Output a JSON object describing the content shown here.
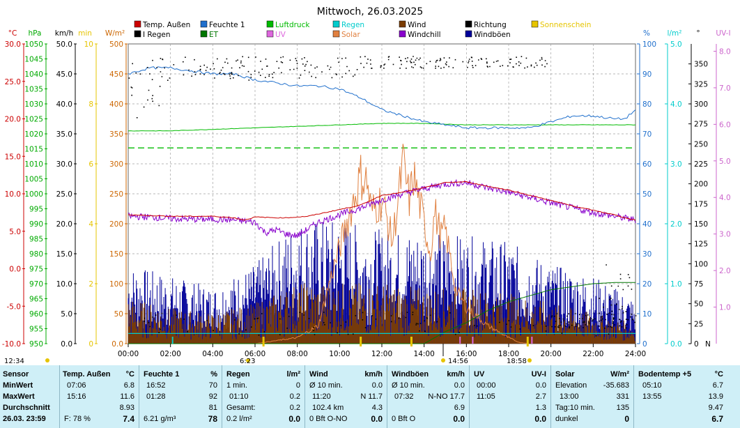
{
  "title": "Mittwoch, 26.03.2025",
  "colors": {
    "temp": "#cc0000",
    "humidity": "#1f6fcc",
    "pressure": "#00aa00",
    "rain": "#00cccc",
    "wind": "#7a3b00",
    "direction": "#000000",
    "sunshine": "#e6c400",
    "rain_rate": "#000000",
    "et": "#007700",
    "uv": "#dd66dd",
    "solar": "#e08040",
    "windchill": "#8800cc",
    "gust": "#000099",
    "grid": "#a0a0a0",
    "table_bg": "#cfeff7"
  },
  "legend": [
    {
      "key": "temp",
      "label": "Temp. Außen",
      "color": "#cc0000"
    },
    {
      "key": "humidity",
      "label": "Feuchte 1",
      "color": "#1f6fcc"
    },
    {
      "key": "pressure",
      "label": "Luftdruck",
      "color": "#00bb00"
    },
    {
      "key": "rain",
      "label": "Regen",
      "color": "#00cccc"
    },
    {
      "key": "wind",
      "label": "Wind",
      "color": "#7a3b00"
    },
    {
      "key": "direction",
      "label": "Richtung",
      "color": "#000000"
    },
    {
      "key": "sunshine",
      "label": "Sonnenschein",
      "color": "#e6c400"
    },
    {
      "key": "rain_rate",
      "label": "Ι Regen",
      "color": "#000000"
    },
    {
      "key": "et",
      "label": "ET",
      "color": "#007700"
    },
    {
      "key": "uv",
      "label": "UV",
      "color": "#dd66dd"
    },
    {
      "key": "solar",
      "label": "Solar",
      "color": "#e08040"
    },
    {
      "key": "windchill",
      "label": "Windchill",
      "color": "#8800cc"
    },
    {
      "key": "gust",
      "label": "Windböen",
      "color": "#000099"
    }
  ],
  "axes_left": [
    {
      "unit": "°C",
      "color": "#cc0000",
      "ticks": [
        "30.0",
        "25.0",
        "20.0",
        "15.0",
        "10.0",
        "5.0",
        "0.0",
        "-5.0",
        "-10.0"
      ]
    },
    {
      "unit": "hPa",
      "color": "#00aa00",
      "ticks": [
        "1050",
        "1045",
        "1040",
        "1035",
        "1030",
        "1025",
        "1020",
        "1015",
        "1010",
        "1005",
        "1000",
        "995",
        "990",
        "985",
        "980",
        "975",
        "970",
        "965",
        "960",
        "955",
        "950"
      ]
    },
    {
      "unit": "km/h",
      "color": "#000000",
      "ticks": [
        "50.0",
        "45.0",
        "40.0",
        "35.0",
        "30.0",
        "25.0",
        "20.0",
        "15.0",
        "10.0",
        "5.0",
        "0.0"
      ]
    },
    {
      "unit": "min",
      "color": "#e6c400",
      "ticks": [
        "10",
        "8",
        "6",
        "4",
        "2",
        "0"
      ]
    },
    {
      "unit": "W/m²",
      "color": "#cc6600",
      "ticks": [
        "500",
        "450",
        "400",
        "350",
        "300",
        "250",
        "200",
        "150",
        "100",
        "50",
        "0.0"
      ]
    }
  ],
  "axes_right": [
    {
      "unit": "%",
      "color": "#1f6fcc",
      "ticks": [
        "100",
        "90",
        "80",
        "70",
        "60",
        "50",
        "40",
        "30",
        "20",
        "10",
        "0"
      ]
    },
    {
      "unit": "l/m²",
      "color": "#00cccc",
      "ticks": [
        "5.0",
        "4.0",
        "3.0",
        "2.0",
        "1.0",
        "0.0"
      ]
    },
    {
      "unit": "°",
      "color": "#000000",
      "ticks": [
        "350",
        "325",
        "300",
        "275",
        "250",
        "225",
        "200",
        "175",
        "150",
        "125",
        "100",
        "75",
        "50",
        "25",
        "0"
      ],
      "bottom_label": "N"
    },
    {
      "unit": "UV-I",
      "color": "#cc66cc",
      "ticks": [
        "8.0",
        "7.0",
        "6.0",
        "5.0",
        "4.0",
        "3.0",
        "2.0",
        "1.0"
      ]
    }
  ],
  "chart_data": {
    "type": "line",
    "x_ticks": [
      "00:00",
      "02:00",
      "04:00",
      "06:00",
      "08:00",
      "10:00",
      "12:00",
      "14:00",
      "16:00",
      "18:00",
      "20:00",
      "22:00",
      "24:00"
    ],
    "series": [
      {
        "name": "Temp. Außen",
        "unit": "°C",
        "x": [
          0,
          1,
          2,
          3,
          4,
          5,
          5.5,
          6,
          7,
          7.5,
          8,
          8.5,
          9,
          10,
          11,
          12,
          13,
          14,
          15,
          16,
          17,
          18,
          19,
          20,
          21,
          22,
          23,
          23.5,
          24
        ],
        "y": [
          7.2,
          7.1,
          7.0,
          7.0,
          7.0,
          6.8,
          6.5,
          6.9,
          6.8,
          6.8,
          6.9,
          7.0,
          7.3,
          7.9,
          8.5,
          9.8,
          10.2,
          10.8,
          11.5,
          11.6,
          11.0,
          10.5,
          9.8,
          9.1,
          8.4,
          7.8,
          7.2,
          6.8,
          6.5
        ]
      },
      {
        "name": "Windchill",
        "unit": "°C",
        "x": [
          0,
          1,
          2,
          3,
          4,
          5,
          6,
          6.5,
          7,
          7.5,
          8,
          8.5,
          9,
          10,
          11,
          12,
          13,
          14,
          15,
          16,
          17,
          18,
          19,
          20,
          21,
          22,
          23,
          24
        ],
        "y": [
          7.0,
          6.9,
          6.7,
          6.6,
          6.6,
          6.5,
          6.2,
          4.8,
          5.2,
          4.6,
          4.4,
          5.3,
          6.2,
          7.2,
          8.1,
          9.2,
          10.0,
          10.7,
          11.3,
          11.5,
          10.8,
          10.2,
          9.5,
          8.8,
          8.1,
          7.5,
          7.0,
          6.5
        ]
      },
      {
        "name": "Feuchte 1",
        "unit": "%",
        "x": [
          0,
          0.5,
          1,
          2,
          3,
          4,
          5,
          6,
          7,
          8,
          9,
          10,
          11,
          12,
          13,
          14,
          15,
          16,
          17,
          18,
          19,
          20,
          21,
          22,
          23,
          23.5,
          24
        ],
        "y": [
          90,
          91,
          92,
          92,
          91,
          90,
          90,
          88,
          87,
          86,
          86,
          85,
          82,
          78,
          76,
          74,
          73,
          72,
          72,
          72,
          72,
          74,
          76,
          76,
          75,
          75,
          78
        ]
      },
      {
        "name": "Luftdruck",
        "unit": "hPa",
        "x": [
          0,
          2,
          4,
          6,
          8,
          10,
          12,
          14,
          16,
          18,
          20,
          22,
          24
        ],
        "y": [
          1021,
          1021,
          1021.5,
          1022,
          1022.5,
          1023,
          1023.5,
          1023.5,
          1023,
          1023,
          1023,
          1023,
          1023
        ]
      },
      {
        "name": "Solar",
        "unit": "W/m²",
        "x": [
          6,
          7,
          8,
          9,
          9.5,
          10,
          10.5,
          11,
          11.3,
          11.5,
          12,
          12.3,
          12.5,
          13,
          13.3,
          13.5,
          14,
          14.3,
          14.5,
          14.8,
          15,
          15.5,
          16,
          17,
          18,
          18.5,
          19
        ],
        "y": [
          0,
          5,
          10,
          30,
          100,
          160,
          220,
          280,
          270,
          220,
          240,
          200,
          170,
          300,
          240,
          280,
          200,
          150,
          220,
          180,
          190,
          90,
          60,
          30,
          10,
          2,
          0
        ]
      },
      {
        "name": "Wind",
        "unit": "km/h",
        "x": [
          0,
          2,
          4,
          6,
          8,
          10,
          12,
          14,
          16,
          18,
          20,
          22,
          24
        ],
        "y": [
          4.5,
          3.5,
          3,
          4,
          6,
          6,
          6,
          5.5,
          5.5,
          5,
          4,
          3,
          2
        ]
      },
      {
        "name": "Windböen",
        "unit": "km/h",
        "x": [
          0,
          2,
          4,
          6,
          8,
          10,
          12,
          14,
          16,
          18,
          20,
          22,
          24
        ],
        "y": [
          7,
          6,
          5,
          7,
          11,
          11,
          10,
          10,
          9.5,
          9,
          7,
          6,
          4
        ]
      },
      {
        "name": "ET",
        "unit": "l/m²",
        "x": [
          0,
          14,
          15,
          16,
          17,
          18,
          19,
          20,
          21,
          22,
          23,
          24
        ],
        "y": [
          0,
          0,
          0.2,
          0.35,
          0.55,
          0.7,
          0.8,
          0.9,
          0.95,
          1.0,
          1.02,
          1.02
        ]
      }
    ],
    "ylim_temp": [
      -10,
      30
    ],
    "ylim_pressure": [
      950,
      1050
    ],
    "ylim_wind": [
      0,
      50
    ],
    "ylim_solar": [
      0,
      500
    ],
    "ylim_humidity": [
      0,
      100
    ],
    "ylim_rain": [
      0,
      5
    ],
    "ylim_direction": [
      0,
      375
    ],
    "ylim_uv": [
      0,
      8.2
    ],
    "grid": true,
    "legend_position": "top"
  },
  "time_labels": {
    "left": "12:34",
    "sunrise": "6:23",
    "noon": "14:56",
    "sunset": "18:58"
  },
  "table": {
    "sensor": {
      "header": "Sensor",
      "rows": [
        "MinWert",
        "MaxWert",
        "Durchschnitt",
        "26.03.  23:59"
      ]
    },
    "temp": {
      "header": "Temp. Außen",
      "unit": "°C",
      "rows": [
        [
          "07:06",
          "6.8"
        ],
        [
          "15:16",
          "11.6"
        ],
        [
          "",
          "8.93"
        ]
      ],
      "footer_label": "F: 78 %",
      "footer_value": "7.4"
    },
    "humidity": {
      "header": "Feuchte 1",
      "unit": "%",
      "rows": [
        [
          "16:52",
          "70"
        ],
        [
          "01:28",
          "92"
        ],
        [
          "",
          "81"
        ]
      ],
      "footer_label": "6.21 g/m³",
      "footer_value": "78"
    },
    "rain": {
      "header": "Regen",
      "unit": "l/m²",
      "rows": [
        [
          "1 min.",
          "0"
        ],
        [
          "01:10",
          "0.2"
        ],
        [
          "",
          ""
        ],
        [
          "Gesamt:",
          "0.2"
        ]
      ],
      "footer_label": "0.2 l/m²",
      "footer_value": "0.0"
    },
    "wind": {
      "header": "Wind",
      "unit": "km/h",
      "rows": [
        [
          "Ø 10 min.",
          "0.0"
        ],
        [
          "11:20",
          "N 11.7"
        ],
        [
          "",
          ""
        ],
        [
          "102.4 km",
          "4.3"
        ]
      ],
      "footer_label": "0 Bft O-NO",
      "footer_value": "0.0"
    },
    "gust": {
      "header": "Windböen",
      "unit": "km/h",
      "rows": [
        [
          "Ø 10 min.",
          "0.0"
        ],
        [
          "07:32",
          "N-NO 17.7"
        ],
        [
          "",
          "6.9"
        ]
      ],
      "footer_label": "0 Bft O",
      "footer_value": "0.0"
    },
    "uv": {
      "header": "UV",
      "unit": "UV-I",
      "rows": [
        [
          "00:00",
          "0.0"
        ],
        [
          "11:05",
          "2.7"
        ],
        [
          "",
          "1.3"
        ]
      ],
      "footer_label": "",
      "footer_value": "0.0"
    },
    "solar": {
      "header": "Solar",
      "unit": "W/m²",
      "rows": [
        [
          "Elevation",
          "-35.683"
        ],
        [
          "13:00",
          "331"
        ],
        [
          "Tag:10 min.",
          "135"
        ]
      ],
      "footer_label": "dunkel",
      "footer_value": "0"
    },
    "soil": {
      "header": "Bodentemp +5",
      "unit": "°C",
      "rows": [
        [
          "05:10",
          "6.7"
        ],
        [
          "13:55",
          "13.9"
        ],
        [
          "",
          "9.47"
        ]
      ],
      "footer_label": "",
      "footer_value": "6.7"
    }
  }
}
